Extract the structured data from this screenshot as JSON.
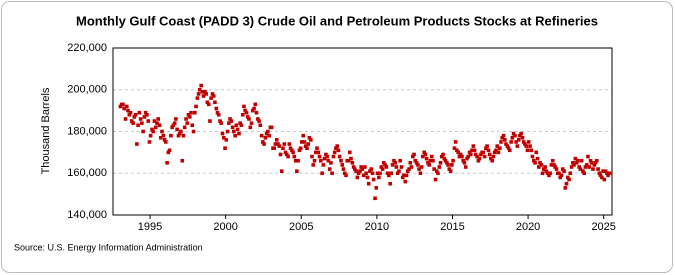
{
  "chart_data": {
    "type": "scatter",
    "title": "Monthly Gulf Coast (PADD 3) Crude Oil and Petroleum Products Stocks at Refineries",
    "y_label": "Thousand Barrels",
    "source": "Source: U.S. Energy Information Administration",
    "color": "#c00000",
    "grid": true,
    "xlim": [
      1992.55,
      2025.55
    ],
    "ylim": [
      140000,
      220000
    ],
    "xticks": [
      1995,
      2000,
      2005,
      2010,
      2015,
      2020,
      2025
    ],
    "yticks": [
      {
        "value": 140000,
        "label": "140,000"
      },
      {
        "value": 160000,
        "label": "160,000"
      },
      {
        "value": 180000,
        "label": "180,000"
      },
      {
        "value": 200000,
        "label": "200,000"
      },
      {
        "value": 220000,
        "label": "220,000"
      }
    ],
    "x": [
      1993.04,
      1993.13,
      1993.21,
      1993.29,
      1993.38,
      1993.46,
      1993.54,
      1993.63,
      1993.71,
      1993.79,
      1993.88,
      1993.96,
      1994.04,
      1994.13,
      1994.21,
      1994.29,
      1994.38,
      1994.46,
      1994.54,
      1994.63,
      1994.71,
      1994.79,
      1994.88,
      1994.96,
      1995.04,
      1995.13,
      1995.21,
      1995.29,
      1995.38,
      1995.46,
      1995.54,
      1995.63,
      1995.71,
      1995.79,
      1995.88,
      1995.96,
      1996.04,
      1996.13,
      1996.21,
      1996.29,
      1996.38,
      1996.46,
      1996.54,
      1996.63,
      1996.71,
      1996.79,
      1996.88,
      1996.96,
      1997.04,
      1997.13,
      1997.21,
      1997.29,
      1997.38,
      1997.46,
      1997.54,
      1997.63,
      1997.71,
      1997.79,
      1997.88,
      1997.96,
      1998.04,
      1998.13,
      1998.21,
      1998.29,
      1998.38,
      1998.46,
      1998.54,
      1998.63,
      1998.71,
      1998.79,
      1998.88,
      1998.96,
      1999.04,
      1999.13,
      1999.21,
      1999.29,
      1999.38,
      1999.46,
      1999.54,
      1999.63,
      1999.71,
      1999.79,
      1999.88,
      1999.96,
      2000.04,
      2000.13,
      2000.21,
      2000.29,
      2000.38,
      2000.46,
      2000.54,
      2000.63,
      2000.71,
      2000.79,
      2000.88,
      2000.96,
      2001.04,
      2001.13,
      2001.21,
      2001.29,
      2001.38,
      2001.46,
      2001.54,
      2001.63,
      2001.71,
      2001.79,
      2001.88,
      2001.96,
      2002.04,
      2002.13,
      2002.21,
      2002.29,
      2002.38,
      2002.46,
      2002.54,
      2002.63,
      2002.71,
      2002.79,
      2002.88,
      2002.96,
      2003.04,
      2003.13,
      2003.21,
      2003.29,
      2003.38,
      2003.46,
      2003.54,
      2003.63,
      2003.71,
      2003.79,
      2003.88,
      2003.96,
      2004.04,
      2004.13,
      2004.21,
      2004.29,
      2004.38,
      2004.46,
      2004.54,
      2004.63,
      2004.71,
      2004.79,
      2004.88,
      2004.96,
      2005.04,
      2005.13,
      2005.21,
      2005.29,
      2005.38,
      2005.46,
      2005.54,
      2005.63,
      2005.71,
      2005.79,
      2005.88,
      2005.96,
      2006.04,
      2006.13,
      2006.21,
      2006.29,
      2006.38,
      2006.46,
      2006.54,
      2006.63,
      2006.71,
      2006.79,
      2006.88,
      2006.96,
      2007.04,
      2007.13,
      2007.21,
      2007.29,
      2007.38,
      2007.46,
      2007.54,
      2007.63,
      2007.71,
      2007.79,
      2007.88,
      2007.96,
      2008.04,
      2008.13,
      2008.21,
      2008.29,
      2008.38,
      2008.46,
      2008.54,
      2008.63,
      2008.71,
      2008.79,
      2008.88,
      2008.96,
      2009.04,
      2009.13,
      2009.21,
      2009.29,
      2009.38,
      2009.46,
      2009.54,
      2009.63,
      2009.71,
      2009.79,
      2009.88,
      2009.96,
      2010.04,
      2010.13,
      2010.21,
      2010.29,
      2010.38,
      2010.46,
      2010.54,
      2010.63,
      2010.71,
      2010.79,
      2010.88,
      2010.96,
      2011.04,
      2011.13,
      2011.21,
      2011.29,
      2011.38,
      2011.46,
      2011.54,
      2011.63,
      2011.71,
      2011.79,
      2011.88,
      2011.96,
      2012.04,
      2012.13,
      2012.21,
      2012.29,
      2012.38,
      2012.46,
      2012.54,
      2012.63,
      2012.71,
      2012.79,
      2012.88,
      2012.96,
      2013.04,
      2013.13,
      2013.21,
      2013.29,
      2013.38,
      2013.46,
      2013.54,
      2013.63,
      2013.71,
      2013.79,
      2013.88,
      2013.96,
      2014.04,
      2014.13,
      2014.21,
      2014.29,
      2014.38,
      2014.46,
      2014.54,
      2014.63,
      2014.71,
      2014.79,
      2014.88,
      2014.96,
      2015.04,
      2015.13,
      2015.21,
      2015.29,
      2015.38,
      2015.46,
      2015.54,
      2015.63,
      2015.71,
      2015.79,
      2015.88,
      2015.96,
      2016.04,
      2016.13,
      2016.21,
      2016.29,
      2016.38,
      2016.46,
      2016.54,
      2016.63,
      2016.71,
      2016.79,
      2016.88,
      2016.96,
      2017.04,
      2017.13,
      2017.21,
      2017.29,
      2017.38,
      2017.46,
      2017.54,
      2017.63,
      2017.71,
      2017.79,
      2017.88,
      2017.96,
      2018.04,
      2018.13,
      2018.21,
      2018.29,
      2018.38,
      2018.46,
      2018.54,
      2018.63,
      2018.71,
      2018.79,
      2018.88,
      2018.96,
      2019.04,
      2019.13,
      2019.21,
      2019.29,
      2019.38,
      2019.46,
      2019.54,
      2019.63,
      2019.71,
      2019.79,
      2019.88,
      2019.96,
      2020.04,
      2020.13,
      2020.21,
      2020.29,
      2020.38,
      2020.46,
      2020.54,
      2020.63,
      2020.71,
      2020.79,
      2020.88,
      2020.96,
      2021.04,
      2021.13,
      2021.21,
      2021.29,
      2021.38,
      2021.46,
      2021.54,
      2021.63,
      2021.71,
      2021.79,
      2021.88,
      2021.96,
      2022.04,
      2022.13,
      2022.21,
      2022.29,
      2022.38,
      2022.46,
      2022.54,
      2022.63,
      2022.71,
      2022.79,
      2022.88,
      2022.96,
      2023.04,
      2023.13,
      2023.21,
      2023.29,
      2023.38,
      2023.46,
      2023.54,
      2023.63,
      2023.71,
      2023.79,
      2023.88,
      2023.96,
      2024.04,
      2024.13,
      2024.21,
      2024.29,
      2024.38,
      2024.46,
      2024.54,
      2024.63,
      2024.71,
      2024.79,
      2024.88,
      2024.96,
      2025.04,
      2025.13,
      2025.21,
      2025.29,
      2025.38
    ],
    "values": [
      192000,
      193000,
      193000,
      191000,
      186000,
      192000,
      190000,
      188000,
      189000,
      185000,
      184000,
      187000,
      188000,
      174000,
      183000,
      189000,
      186000,
      184000,
      180000,
      187000,
      189000,
      188000,
      185000,
      175000,
      178000,
      181000,
      180000,
      185000,
      182000,
      184000,
      186000,
      183000,
      177000,
      180000,
      178000,
      176000,
      175000,
      165000,
      170000,
      171000,
      178000,
      182000,
      183000,
      184000,
      186000,
      181000,
      178000,
      179000,
      180000,
      166000,
      178000,
      182000,
      186000,
      184000,
      188000,
      187000,
      189000,
      183000,
      180000,
      189000,
      192000,
      196000,
      198000,
      200000,
      202000,
      199000,
      197000,
      199000,
      198000,
      194000,
      193000,
      185000,
      196000,
      198000,
      197000,
      194000,
      191000,
      189000,
      188000,
      185000,
      184000,
      179000,
      177000,
      172000,
      176000,
      180000,
      184000,
      186000,
      185000,
      182000,
      180000,
      178000,
      183000,
      181000,
      179000,
      184000,
      183000,
      188000,
      192000,
      190000,
      189000,
      187000,
      186000,
      182000,
      184000,
      190000,
      191000,
      193000,
      189000,
      186000,
      185000,
      183000,
      178000,
      175000,
      174000,
      177000,
      179000,
      180000,
      178000,
      182000,
      182000,
      172000,
      172000,
      174000,
      176000,
      174000,
      173000,
      169000,
      161000,
      172000,
      174000,
      170000,
      169000,
      168000,
      174000,
      172000,
      171000,
      170000,
      168000,
      166000,
      161000,
      166000,
      171000,
      172000,
      175000,
      178000,
      175000,
      173000,
      172000,
      174000,
      177000,
      176000,
      168000,
      164000,
      166000,
      170000,
      172000,
      170000,
      168000,
      166000,
      160000,
      164000,
      167000,
      169000,
      168000,
      166000,
      162000,
      165000,
      160000,
      168000,
      170000,
      172000,
      173000,
      171000,
      168000,
      166000,
      164000,
      162000,
      160000,
      159000,
      166000,
      166000,
      170000,
      167000,
      165000,
      163000,
      162000,
      161000,
      158000,
      160000,
      161000,
      163000,
      162000,
      159000,
      163000,
      160000,
      158000,
      155000,
      161000,
      162000,
      160000,
      157000,
      148000,
      153000,
      160000,
      158000,
      160000,
      163000,
      162000,
      165000,
      164000,
      163000,
      160000,
      159000,
      155000,
      160000,
      164000,
      166000,
      165000,
      163000,
      160000,
      161000,
      166000,
      163000,
      158000,
      159000,
      156000,
      159000,
      161000,
      162000,
      165000,
      163000,
      168000,
      169000,
      166000,
      165000,
      164000,
      162000,
      160000,
      163000,
      168000,
      170000,
      169000,
      167000,
      165000,
      164000,
      166000,
      168000,
      166000,
      162000,
      157000,
      161000,
      160000,
      163000,
      165000,
      168000,
      169000,
      167000,
      166000,
      165000,
      164000,
      162000,
      161000,
      164000,
      166000,
      172000,
      175000,
      171000,
      170000,
      168000,
      169000,
      168000,
      166000,
      165000,
      163000,
      167000,
      168000,
      170000,
      169000,
      171000,
      173000,
      171000,
      169000,
      168000,
      166000,
      167000,
      169000,
      170000,
      170000,
      168000,
      172000,
      173000,
      171000,
      169000,
      167000,
      166000,
      168000,
      170000,
      171000,
      173000,
      170000,
      172000,
      175000,
      177000,
      178000,
      176000,
      174000,
      173000,
      172000,
      171000,
      175000,
      177000,
      179000,
      178000,
      175000,
      173000,
      176000,
      178000,
      179000,
      177000,
      175000,
      174000,
      173000,
      171000,
      175000,
      173000,
      171000,
      168000,
      166000,
      165000,
      170000,
      167000,
      163000,
      165000,
      164000,
      160000,
      162000,
      163000,
      161000,
      160000,
      159000,
      160000,
      164000,
      166000,
      164000,
      163000,
      162000,
      160000,
      160000,
      158000,
      159000,
      162000,
      161000,
      153000,
      155000,
      158000,
      157000,
      160000,
      163000,
      165000,
      164000,
      167000,
      165000,
      166000,
      163000,
      162000,
      166000,
      161000,
      160000,
      163000,
      164000,
      168000,
      163000,
      166000,
      165000,
      162000,
      164000,
      165000,
      166000,
      162000,
      160000,
      159000,
      158000,
      161000,
      157000,
      161000,
      160000,
      159000,
      160000
    ]
  }
}
